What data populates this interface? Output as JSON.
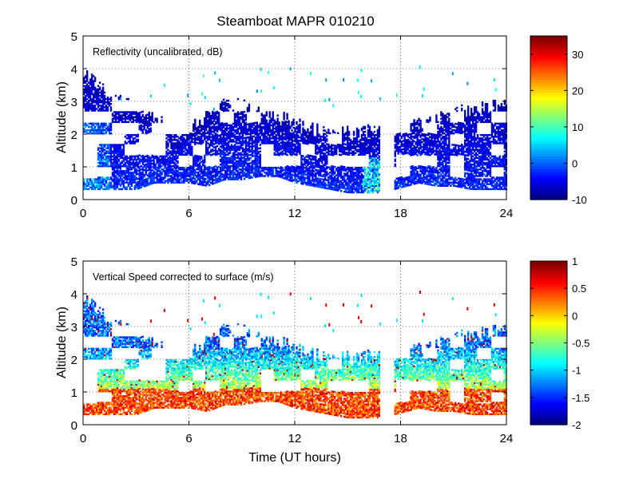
{
  "figure_title": "Steamboat MAPR 010210",
  "xlabel": "Time (UT hours)",
  "chart_data": [
    {
      "type": "heatmap",
      "title": "Reflectivity (uncalibrated, dB)",
      "ylabel": "Altitude (km)",
      "xlim": [
        0,
        24
      ],
      "ylim": [
        0,
        5
      ],
      "xticks": [
        "0",
        "6",
        "12",
        "18",
        "24"
      ],
      "yticks": [
        "0",
        "1",
        "2",
        "3",
        "4",
        "5"
      ],
      "colorbar": {
        "min": -10,
        "max": 35,
        "ticks": [
          "-10",
          "0",
          "10",
          "20",
          "30"
        ]
      },
      "data_gap_hours": [
        16.9,
        17.6
      ],
      "echo_profile": [
        {
          "t": 0.0,
          "top": 3.9,
          "bottom": 0.3
        },
        {
          "t": 1.0,
          "top": 3.4,
          "bottom": 0.3
        },
        {
          "t": 2.0,
          "top": 3.0,
          "bottom": 0.3
        },
        {
          "t": 3.0,
          "top": 2.9,
          "bottom": 0.3
        },
        {
          "t": 4.0,
          "top": 2.6,
          "bottom": 0.5
        },
        {
          "t": 5.0,
          "top": 2.0,
          "bottom": 0.5
        },
        {
          "t": 6.0,
          "top": 2.2,
          "bottom": 0.5
        },
        {
          "t": 7.0,
          "top": 2.6,
          "bottom": 0.4
        },
        {
          "t": 8.0,
          "top": 2.9,
          "bottom": 0.6
        },
        {
          "t": 9.0,
          "top": 2.9,
          "bottom": 0.6
        },
        {
          "t": 10.0,
          "top": 2.6,
          "bottom": 0.7
        },
        {
          "t": 11.0,
          "top": 2.5,
          "bottom": 0.7
        },
        {
          "t": 12.0,
          "top": 2.3,
          "bottom": 0.5
        },
        {
          "t": 13.0,
          "top": 2.1,
          "bottom": 0.4
        },
        {
          "t": 14.0,
          "top": 2.0,
          "bottom": 0.3
        },
        {
          "t": 15.0,
          "top": 2.0,
          "bottom": 0.2
        },
        {
          "t": 16.0,
          "top": 2.1,
          "bottom": 0.2
        },
        {
          "t": 16.9,
          "top": 2.3,
          "bottom": 0.2
        },
        {
          "t": 17.6,
          "top": 2.3,
          "bottom": 0.3
        },
        {
          "t": 19.0,
          "top": 2.3,
          "bottom": 0.5
        },
        {
          "t": 20.0,
          "top": 2.4,
          "bottom": 0.4
        },
        {
          "t": 21.0,
          "top": 2.6,
          "bottom": 0.4
        },
        {
          "t": 22.0,
          "top": 2.7,
          "bottom": 0.3
        },
        {
          "t": 23.0,
          "top": 2.8,
          "bottom": 0.3
        },
        {
          "t": 24.0,
          "top": 2.8,
          "bottom": 0.3
        }
      ]
    },
    {
      "type": "heatmap",
      "title": "Vertical Speed corrected to surface (m/s)",
      "ylabel": "Altitude (km)",
      "xlim": [
        0,
        24
      ],
      "ylim": [
        0,
        5
      ],
      "xticks": [
        "0",
        "6",
        "12",
        "18",
        "24"
      ],
      "yticks": [
        "0",
        "1",
        "2",
        "3",
        "4",
        "5"
      ],
      "colorbar": {
        "min": -2,
        "max": 1,
        "ticks": [
          "-2",
          "-1.5",
          "-1",
          "-0.5",
          "0",
          "0.5",
          "1"
        ]
      },
      "data_gap_hours": [
        16.9,
        17.6
      ]
    }
  ]
}
